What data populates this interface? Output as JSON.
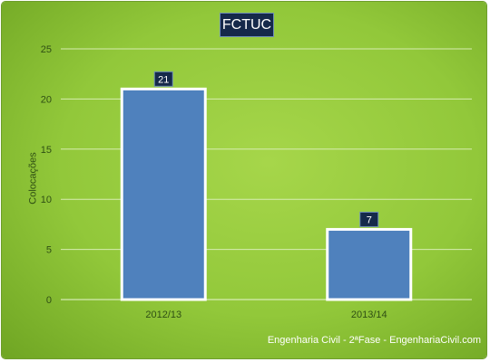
{
  "chart_data": {
    "type": "bar",
    "title": "FCTUC",
    "ylabel": "Colocações",
    "xlabel": "",
    "categories": [
      "2012/13",
      "2013/14"
    ],
    "values": [
      21,
      7
    ],
    "data_labels": [
      "21",
      "7"
    ],
    "ylim": [
      0,
      25
    ],
    "yticks": [
      "0",
      "5",
      "10",
      "15",
      "20",
      "25"
    ],
    "grid": true,
    "bar_color": "#4f81bd",
    "label_box_color": "#15294a",
    "background_color": "#92c83a"
  },
  "footer": "Engenharia Civil - 2ªFase - EngenhariaCivil.com"
}
